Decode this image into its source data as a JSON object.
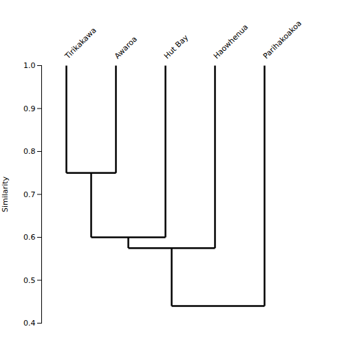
{
  "chart_data": {
    "type": "dendrogram",
    "categories": [
      "Tirikakawa",
      "Awaroa",
      "Hut Bay",
      "Haowhenua",
      "Parihakoakoa"
    ],
    "leaf_height": 1.0,
    "merges": [
      {
        "members": [
          "Tirikakawa",
          "Awaroa"
        ],
        "height": 0.75
      },
      {
        "members": [
          "Tirikakawa",
          "Awaroa",
          "Hut Bay"
        ],
        "height": 0.6
      },
      {
        "members": [
          "Tirikakawa",
          "Awaroa",
          "Hut Bay",
          "Haowhenua"
        ],
        "height": 0.575
      },
      {
        "members": [
          "Tirikakawa",
          "Awaroa",
          "Hut Bay",
          "Haowhenua",
          "Parihakoakoa"
        ],
        "height": 0.44
      }
    ],
    "ylabel": "Similarity",
    "ylim": [
      0.4,
      1.0
    ],
    "yticks": [
      0.4,
      0.5,
      0.6,
      0.7,
      0.8,
      0.9,
      {
        "value": 1.0,
        "label": "1.0"
      }
    ],
    "color": "#000000",
    "grid": false
  }
}
